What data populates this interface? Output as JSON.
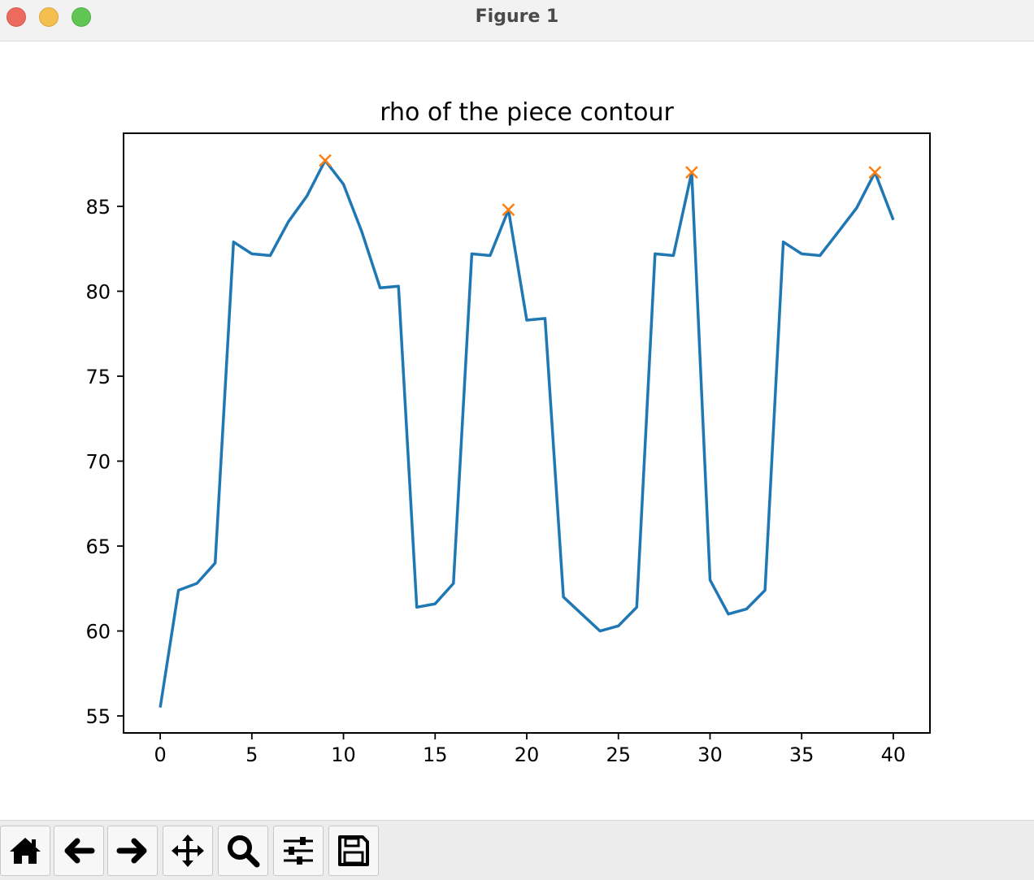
{
  "window": {
    "title": "Figure 1"
  },
  "toolbar": {
    "buttons": [
      {
        "name": "home-button",
        "icon": "home-icon"
      },
      {
        "name": "back-button",
        "icon": "arrow-left-icon"
      },
      {
        "name": "forward-button",
        "icon": "arrow-right-icon"
      },
      {
        "name": "pan-button",
        "icon": "move-icon"
      },
      {
        "name": "zoom-button",
        "icon": "magnifier-icon"
      },
      {
        "name": "configure-subplots-button",
        "icon": "sliders-icon"
      },
      {
        "name": "save-button",
        "icon": "floppy-disk-icon"
      }
    ]
  },
  "chart_data": {
    "type": "line",
    "title": "rho of the piece contour",
    "xlabel": "",
    "ylabel": "",
    "xlim": [
      -2,
      42
    ],
    "ylim": [
      54,
      89.3
    ],
    "xticks": [
      0,
      5,
      10,
      15,
      20,
      25,
      30,
      35,
      40
    ],
    "yticks": [
      55,
      60,
      65,
      70,
      75,
      80,
      85
    ],
    "grid": false,
    "series": [
      {
        "color": "#1f77b4",
        "x": [
          0,
          1,
          2,
          3,
          4,
          5,
          6,
          7,
          8,
          9,
          10,
          11,
          12,
          13,
          14,
          15,
          16,
          17,
          18,
          19,
          20,
          21,
          22,
          23,
          24,
          25,
          26,
          27,
          28,
          29,
          30,
          31,
          32,
          33,
          34,
          35,
          36,
          37,
          38,
          39,
          40
        ],
        "y": [
          55.5,
          62.4,
          62.8,
          64.0,
          82.9,
          82.2,
          82.1,
          84.1,
          85.6,
          87.7,
          86.3,
          83.5,
          80.2,
          80.3,
          61.4,
          61.6,
          62.8,
          82.2,
          82.1,
          84.8,
          78.3,
          78.4,
          62.0,
          61.0,
          60.0,
          60.3,
          61.4,
          82.2,
          82.1,
          87.0,
          63.0,
          61.0,
          61.3,
          62.4,
          82.9,
          82.2,
          82.1,
          83.5,
          84.9,
          87.0,
          84.2
        ]
      },
      {
        "type": "scatter",
        "marker": "x",
        "color": "#ff7f0e",
        "x": [
          9,
          19,
          29,
          39
        ],
        "y": [
          87.7,
          84.8,
          87.0,
          87.0
        ]
      }
    ]
  }
}
